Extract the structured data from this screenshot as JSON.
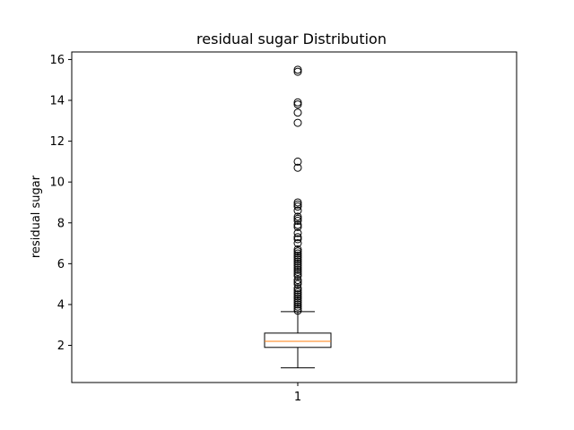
{
  "chart_data": {
    "type": "box",
    "title": "residual sugar Distribution",
    "xlabel": "",
    "ylabel": "residual sugar",
    "categories": [
      "1"
    ],
    "ylim": [
      0.18,
      16.37
    ],
    "yticks": [
      2,
      4,
      6,
      8,
      10,
      12,
      14,
      16
    ],
    "grid": false,
    "box": {
      "whisker_low": 0.9,
      "q1": 1.9,
      "median": 2.2,
      "q3": 2.6,
      "whisker_high": 3.65
    },
    "outliers": [
      15.5,
      15.4,
      13.9,
      13.8,
      13.4,
      12.9,
      11.0,
      10.7,
      9.0,
      8.9,
      8.8,
      8.6,
      8.3,
      8.2,
      8.1,
      7.9,
      7.8,
      7.5,
      7.3,
      7.2,
      7.0,
      6.7,
      6.6,
      6.5,
      6.4,
      6.3,
      6.2,
      6.1,
      6.0,
      5.9,
      5.8,
      5.7,
      5.6,
      5.5,
      5.4,
      5.2,
      5.1,
      5.0,
      4.8,
      4.7,
      4.6,
      4.5,
      4.4,
      4.3,
      4.2,
      4.1,
      4.0,
      3.9,
      3.8,
      3.7
    ],
    "colors": {
      "box": "#000000",
      "median": "#ff7f0e",
      "outlier_edge": "#000000"
    }
  }
}
